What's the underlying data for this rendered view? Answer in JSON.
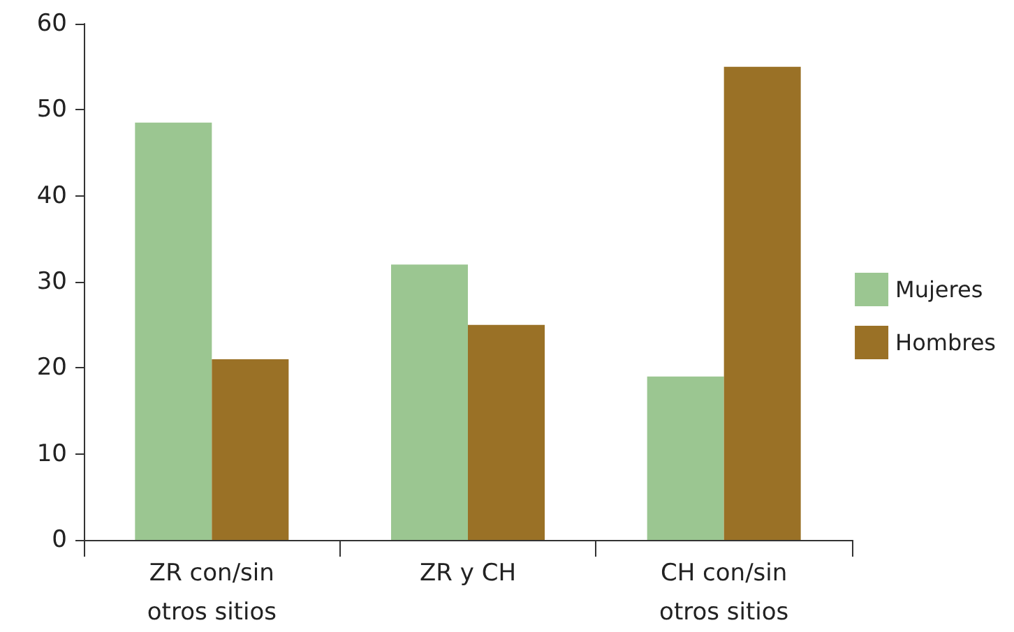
{
  "chart_data": {
    "type": "bar",
    "categories": [
      "ZR con/sin\notros sitios",
      "ZR y CH",
      "CH con/sin\notros sitios"
    ],
    "series": [
      {
        "name": "Mujeres",
        "color": "#9bc691",
        "values": [
          48.5,
          32,
          19
        ]
      },
      {
        "name": "Hombres",
        "color": "#9a7126",
        "values": [
          21,
          25,
          55
        ]
      }
    ],
    "ylim": [
      0,
      60
    ],
    "yticks": [
      0,
      10,
      20,
      30,
      40,
      50,
      60
    ],
    "grid": false,
    "legend": "right"
  }
}
